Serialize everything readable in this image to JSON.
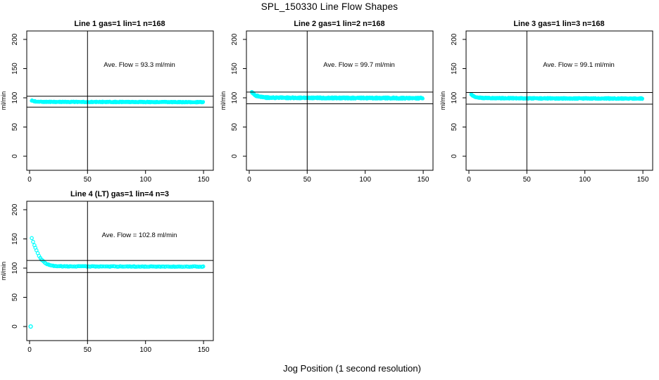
{
  "figure": {
    "title": "SPL_150330  Line Flow Shapes",
    "xlabel": "Jog Position (1 second resolution)",
    "background": "#FFFFFF",
    "axis_color": "#000000",
    "point_color": "#00FFFF"
  },
  "chart_data": [
    {
      "type": "scatter",
      "title": "Line 1 gas=1 lin=1 n=168",
      "annotation": "Ave. Flow =  93.3  ml/min",
      "ave_flow_ml_min": 93.3,
      "ylabel": "ml/min",
      "x_ticks": [
        0,
        50,
        100,
        150
      ],
      "y_ticks": [
        0,
        50,
        100,
        150,
        200
      ],
      "xlim": [
        -2.5,
        158.5
      ],
      "ylim": [
        -24,
        214
      ],
      "grid": false,
      "vline_x": 50,
      "hlines": [
        102.6,
        84.0
      ],
      "point_step": 0.6,
      "point_radius": 1.9,
      "layers": 2,
      "series": {
        "name": "flow-trace",
        "color": "#00FFFF",
        "x_range": [
          2,
          150
        ],
        "band_halfwidth_ml": 0.8,
        "profile_points": [
          [
            2,
            95.5
          ],
          [
            3,
            94.5
          ],
          [
            6,
            93.5
          ],
          [
            12,
            93
          ],
          [
            80,
            92.8
          ],
          [
            150,
            92.6
          ]
        ]
      },
      "extra_points": []
    },
    {
      "type": "scatter",
      "title": "Line 2 gas=1 lin=2 n=168",
      "annotation": "Ave. Flow =  99.7  ml/min",
      "ave_flow_ml_min": 99.7,
      "ylabel": "ml/min",
      "x_ticks": [
        0,
        50,
        100,
        150
      ],
      "y_ticks": [
        0,
        50,
        100,
        150,
        200
      ],
      "xlim": [
        -2.5,
        158.5
      ],
      "ylim": [
        -24,
        214
      ],
      "grid": false,
      "vline_x": 50,
      "hlines": [
        109.7,
        89.7
      ],
      "point_step": 0.6,
      "point_radius": 1.9,
      "layers": 2,
      "series": {
        "name": "flow-trace",
        "color": "#00FFFF",
        "x_range": [
          2,
          150
        ],
        "band_halfwidth_ml": 1.3,
        "profile_points": [
          [
            2,
            111
          ],
          [
            3,
            108.5
          ],
          [
            4,
            106.5
          ],
          [
            6,
            103.5
          ],
          [
            9,
            101.5
          ],
          [
            13,
            100.5
          ],
          [
            30,
            100
          ],
          [
            150,
            99.4
          ]
        ]
      },
      "extra_points": []
    },
    {
      "type": "scatter",
      "title": "Line 3 gas=1 lin=3 n=168",
      "annotation": "Ave. Flow =  99.1  ml/min",
      "ave_flow_ml_min": 99.1,
      "ylabel": "ml/min",
      "x_ticks": [
        0,
        50,
        100,
        150
      ],
      "y_ticks": [
        0,
        50,
        100,
        150,
        200
      ],
      "xlim": [
        -2.5,
        158.5
      ],
      "ylim": [
        -24,
        214
      ],
      "grid": false,
      "vline_x": 50,
      "hlines": [
        109.0,
        89.2
      ],
      "point_step": 0.6,
      "point_radius": 1.9,
      "layers": 2,
      "series": {
        "name": "flow-trace",
        "color": "#00FFFF",
        "x_range": [
          2,
          150
        ],
        "band_halfwidth_ml": 1.0,
        "profile_points": [
          [
            2,
            105.5
          ],
          [
            3,
            104
          ],
          [
            5,
            102
          ],
          [
            8,
            100.5
          ],
          [
            14,
            99.5
          ],
          [
            60,
            99
          ],
          [
            150,
            98.7
          ]
        ]
      },
      "extra_points": []
    },
    {
      "type": "scatter",
      "title": "Line 4 (LT) gas=1 lin=4 n=3",
      "annotation": "Ave. Flow =  102.8  ml/min",
      "ave_flow_ml_min": 102.8,
      "ylabel": "ml/min",
      "x_ticks": [
        0,
        50,
        100,
        150
      ],
      "y_ticks": [
        0,
        50,
        100,
        150,
        200
      ],
      "xlim": [
        -2.5,
        158.5
      ],
      "ylim": [
        -24,
        214
      ],
      "grid": false,
      "vline_x": 50,
      "hlines": [
        113.1,
        92.5
      ],
      "point_step": 1.0,
      "point_radius": 2.2,
      "layers": 1,
      "series": {
        "name": "flow-trace",
        "color": "#00FFFF",
        "x_range": [
          2,
          150
        ],
        "band_halfwidth_ml": 0.5,
        "profile_points": [
          [
            2,
            151
          ],
          [
            4,
            139.5
          ],
          [
            6,
            130
          ],
          [
            8,
            121
          ],
          [
            10,
            115
          ],
          [
            12,
            111
          ],
          [
            14,
            108
          ],
          [
            16,
            106
          ],
          [
            18,
            104.8
          ],
          [
            20,
            104
          ],
          [
            24,
            103.4
          ],
          [
            30,
            103
          ],
          [
            60,
            102.8
          ],
          [
            100,
            102.7
          ],
          [
            150,
            102.6
          ]
        ]
      },
      "extra_points": [
        [
          1,
          0
        ]
      ]
    }
  ]
}
